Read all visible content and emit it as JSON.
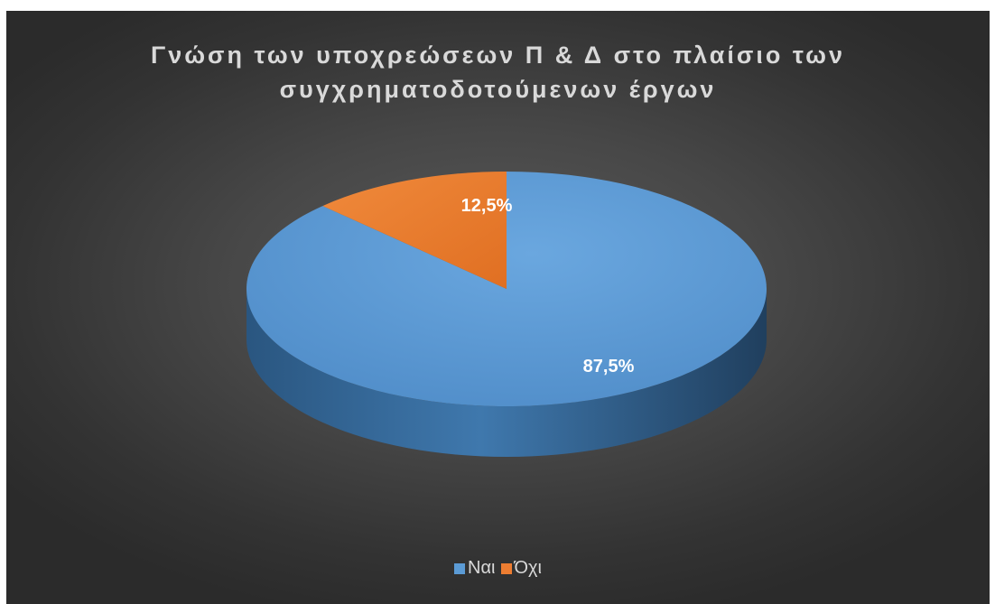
{
  "chart_data": {
    "type": "pie",
    "title_lines": [
      "Γνώση των υποχρεώσεων Π & Δ στο πλαίσιο των",
      "συγχρηματοδοτούμενων έργων"
    ],
    "slices": [
      {
        "label": "Ναι",
        "value": 87.5,
        "display": "87,5%",
        "color": "#5b9bd5"
      },
      {
        "label": "Όχι",
        "value": 12.5,
        "display": "12,5%",
        "color": "#ed7d31"
      }
    ],
    "legend_position": "bottom",
    "style": "3d"
  }
}
